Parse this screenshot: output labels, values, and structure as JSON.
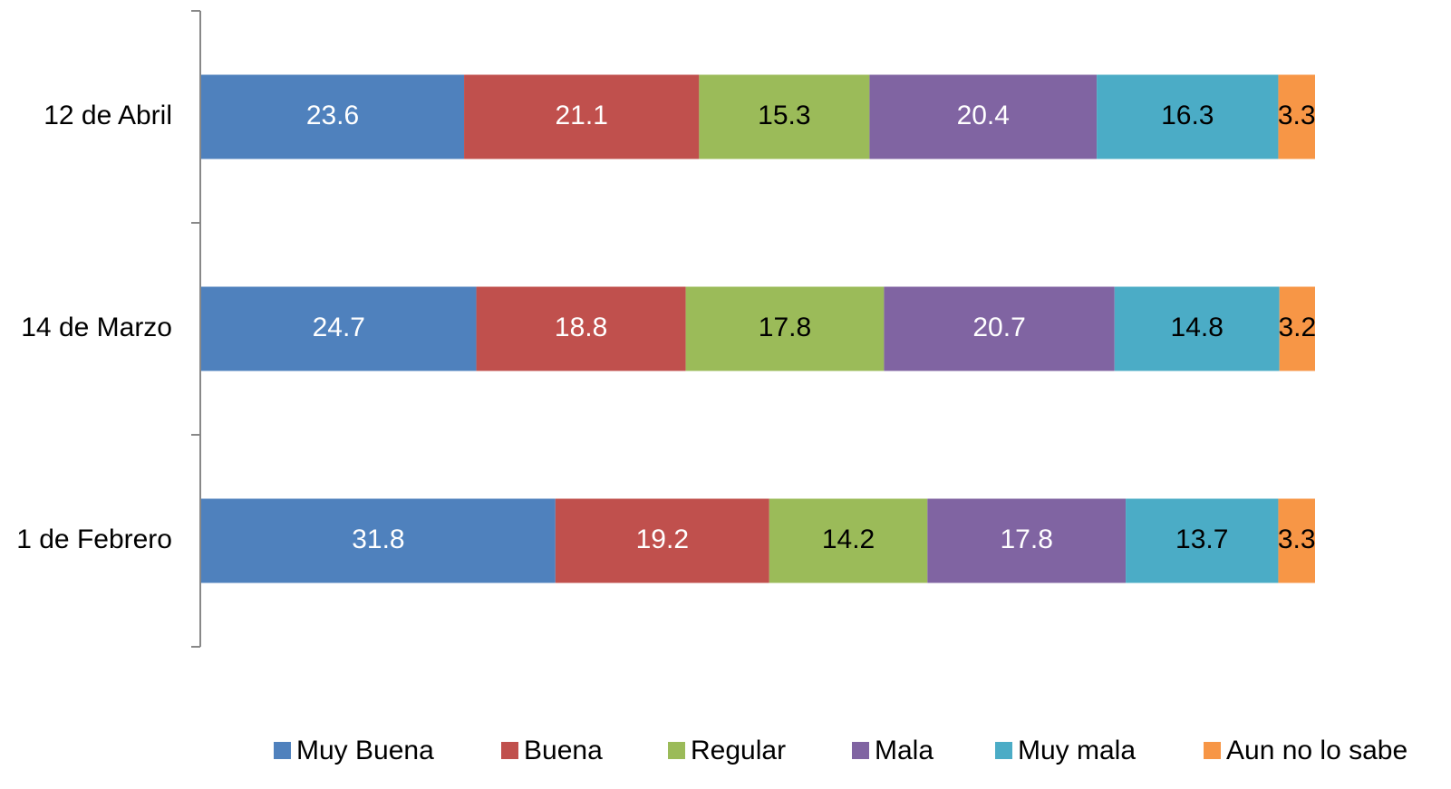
{
  "chart_data": {
    "type": "stacked-barh",
    "categories": [
      "12 de Abril",
      "14 de Marzo",
      "1 de Febrero"
    ],
    "xlim": [
      0,
      100
    ],
    "series": [
      {
        "name": "Muy Buena",
        "color": "#4f81bd",
        "label_color": "#ffffff",
        "values": [
          23.6,
          24.7,
          31.8
        ]
      },
      {
        "name": "Buena",
        "color": "#c0504d",
        "label_color": "#ffffff",
        "values": [
          21.1,
          18.8,
          19.2
        ]
      },
      {
        "name": "Regular",
        "color": "#9bbb59",
        "label_color": "#000000",
        "values": [
          15.3,
          17.8,
          14.2
        ]
      },
      {
        "name": "Mala",
        "color": "#8064a2",
        "label_color": "#ffffff",
        "values": [
          20.4,
          20.7,
          17.8
        ]
      },
      {
        "name": "Muy mala",
        "color": "#4bacc6",
        "label_color": "#000000",
        "values": [
          16.3,
          14.8,
          13.7
        ]
      },
      {
        "name": "Aun no lo sabe",
        "color": "#f79646",
        "label_color": "#000000",
        "values": [
          3.3,
          3.2,
          3.3
        ]
      }
    ]
  }
}
